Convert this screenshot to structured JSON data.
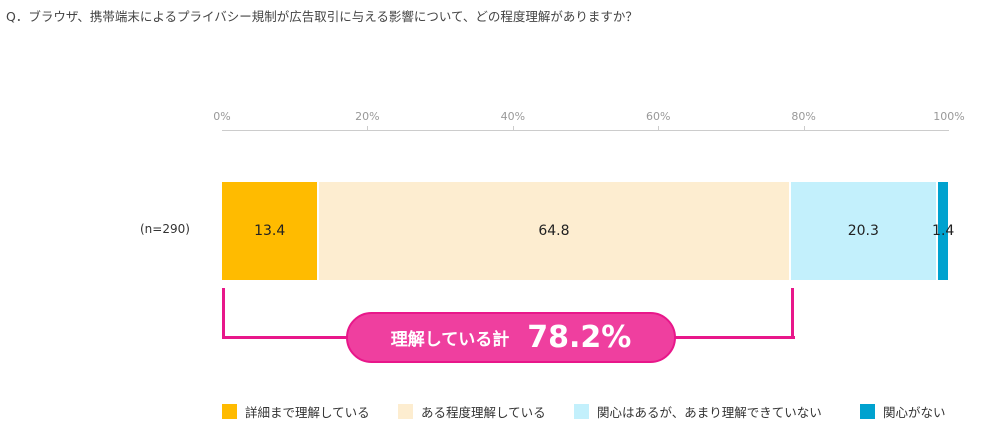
{
  "question": "Q．ブラウザ、携帯端末によるプライバシー規制が広告取引に与える影響について、どの程度理解がありますか？",
  "chart_data": {
    "type": "bar",
    "orientation": "horizontal",
    "stacked": true,
    "categories": [
      "(n=290)"
    ],
    "xlim": [
      0,
      100
    ],
    "ticks": [
      "0%",
      "20%",
      "40%",
      "60%",
      "80%",
      "100%"
    ],
    "series": [
      {
        "name": "詳細まで理解している",
        "values": [
          13.4
        ],
        "label": "13.4",
        "color": "#ffbb00"
      },
      {
        "name": "ある程度理解している",
        "values": [
          64.8
        ],
        "label": "64.8",
        "color": "#fdedd0"
      },
      {
        "name": "関心はあるが、あまり理解できていない",
        "values": [
          20.3
        ],
        "label": "20.3",
        "color": "#c3f0fc"
      },
      {
        "name": "関心がない",
        "values": [
          1.4
        ],
        "label": "1.4",
        "color": "#00a2cf"
      }
    ],
    "legend": "bottom",
    "annotation": {
      "label": "理解している計",
      "value": "78.2%",
      "color": "#ef3f9f"
    }
  }
}
